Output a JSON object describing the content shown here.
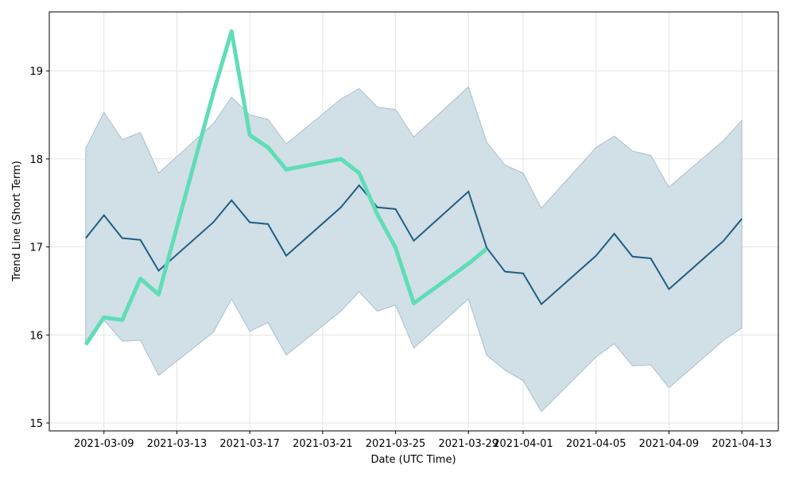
{
  "chart_data": {
    "type": "line",
    "x_label": "Date (UTC Time)",
    "y_label": "Trend Line (Short Term)",
    "x": [
      "2021-03-08",
      "2021-03-09",
      "2021-03-10",
      "2021-03-11",
      "2021-03-12",
      "2021-03-15",
      "2021-03-16",
      "2021-03-17",
      "2021-03-18",
      "2021-03-19",
      "2021-03-22",
      "2021-03-23",
      "2021-03-24",
      "2021-03-25",
      "2021-03-26",
      "2021-03-29",
      "2021-03-30",
      "2021-03-31",
      "2021-04-01",
      "2021-04-02",
      "2021-04-05",
      "2021-04-06",
      "2021-04-07",
      "2021-04-08",
      "2021-04-09",
      "2021-04-12",
      "2021-04-13"
    ],
    "band": {
      "color": "#d1dfe6",
      "edge_color": "#a9c1cf",
      "upper": [
        18.12,
        18.53,
        18.22,
        18.3,
        17.84,
        18.4,
        18.7,
        18.5,
        18.45,
        18.17,
        18.68,
        18.8,
        18.59,
        18.56,
        18.25,
        18.82,
        18.19,
        17.93,
        17.84,
        17.44,
        18.13,
        18.26,
        18.09,
        18.04,
        17.68,
        18.21,
        18.44
      ],
      "lower": [
        15.9,
        16.17,
        15.93,
        15.94,
        15.54,
        16.03,
        16.41,
        16.04,
        16.14,
        15.77,
        16.27,
        16.49,
        16.27,
        16.34,
        15.85,
        16.41,
        15.77,
        15.6,
        15.48,
        15.13,
        15.75,
        15.9,
        15.65,
        15.66,
        15.4,
        15.94,
        16.08
      ]
    },
    "line": {
      "color": "#1f5f84",
      "values": [
        17.1,
        17.36,
        17.1,
        17.08,
        16.73,
        17.28,
        17.53,
        17.28,
        17.26,
        16.9,
        17.45,
        17.7,
        17.45,
        17.43,
        17.07,
        17.63,
        16.99,
        16.72,
        16.7,
        16.35,
        16.9,
        17.15,
        16.89,
        16.87,
        16.52,
        17.07,
        17.32
      ]
    },
    "trend": {
      "color": "#5fddb7",
      "values": [
        15.89,
        16.2,
        16.17,
        16.64,
        16.46,
        18.75,
        19.45,
        18.27,
        18.13,
        17.88,
        18.0,
        17.84,
        17.37,
        16.99,
        16.36,
        16.81,
        16.98,
        null,
        null,
        null,
        null,
        null,
        null,
        null,
        null,
        null,
        null
      ]
    },
    "xlim": [
      "2021-03-06",
      "2021-04-15"
    ],
    "xticks": [
      "2021-03-09",
      "2021-03-13",
      "2021-03-17",
      "2021-03-21",
      "2021-03-25",
      "2021-03-29",
      "2021-04-01",
      "2021-04-05",
      "2021-04-09",
      "2021-04-13"
    ],
    "ylim": [
      14.91,
      19.67
    ],
    "yticks": [
      15,
      16,
      17,
      18,
      19
    ],
    "grid": true
  }
}
